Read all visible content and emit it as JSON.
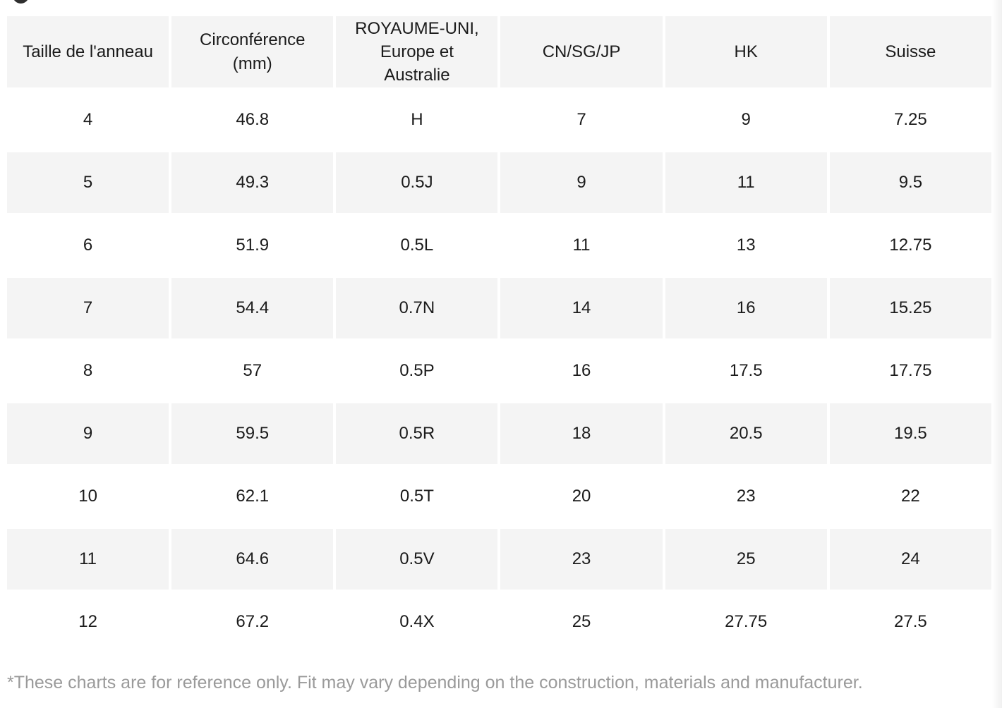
{
  "icons": {
    "partial_circle_color": "#2f2f2f"
  },
  "colors": {
    "cell_grey": "#f4f4f4",
    "text": "#1b1b1b",
    "footnote_grey": "#9a9a9a"
  },
  "table": {
    "columns": [
      "Taille de l'anneau",
      "Circonférence\n(mm)",
      "ROYAUME-UNI,\nEurope et\nAustralie",
      "CN/SG/JP",
      "HK",
      "Suisse"
    ],
    "rows": [
      [
        "4",
        "46.8",
        "H",
        "7",
        "9",
        "7.25"
      ],
      [
        "5",
        "49.3",
        "0.5J",
        "9",
        "11",
        "9.5"
      ],
      [
        "6",
        "51.9",
        "0.5L",
        "11",
        "13",
        "12.75"
      ],
      [
        "7",
        "54.4",
        "0.7N",
        "14",
        "16",
        "15.25"
      ],
      [
        "8",
        "57",
        "0.5P",
        "16",
        "17.5",
        "17.75"
      ],
      [
        "9",
        "59.5",
        "0.5R",
        "18",
        "20.5",
        "19.5"
      ],
      [
        "10",
        "62.1",
        "0.5T",
        "20",
        "23",
        "22"
      ],
      [
        "11",
        "64.6",
        "0.5V",
        "23",
        "25",
        "24"
      ],
      [
        "12",
        "67.2",
        "0.4X",
        "25",
        "27.75",
        "27.5"
      ]
    ]
  },
  "footnote": "*These charts are for reference only. Fit may vary depending on the construction, materials and manufacturer."
}
